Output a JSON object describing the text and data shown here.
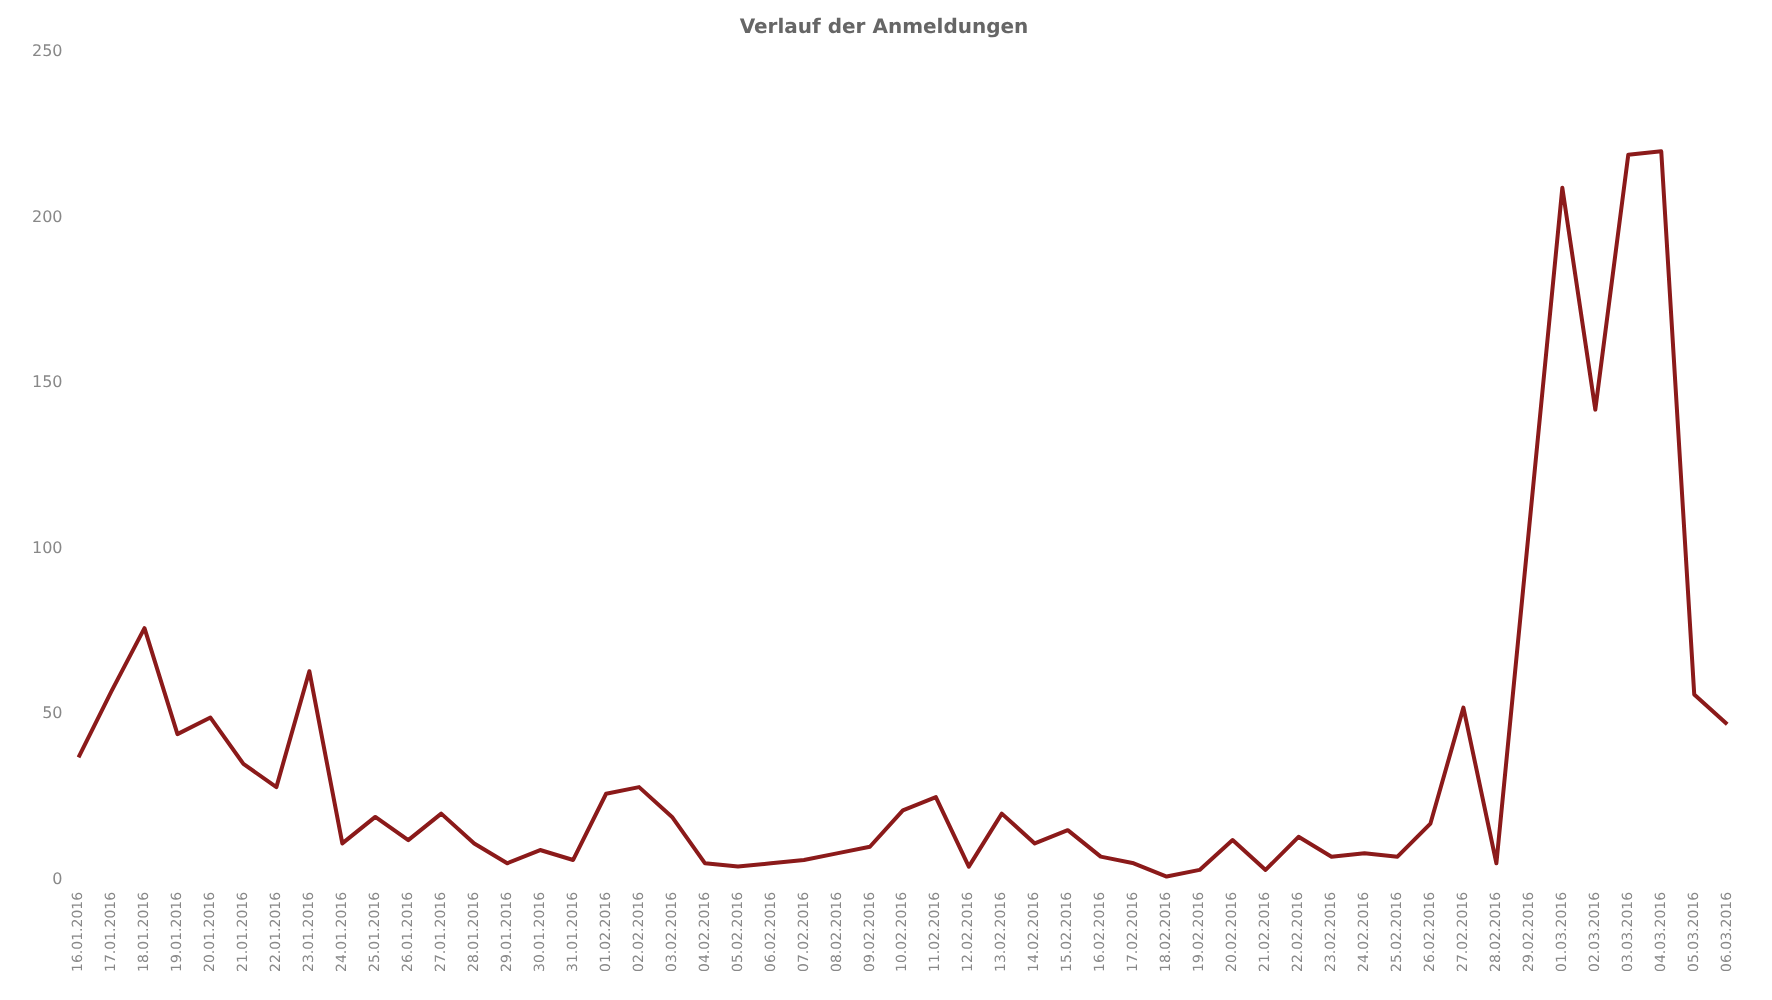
{
  "chart_data": {
    "type": "line",
    "title": "Verlauf der Anmeldungen",
    "categories": [
      "16.01.2016",
      "17.01.2016",
      "18.01.2016",
      "19.01.2016",
      "20.01.2016",
      "21.01.2016",
      "22.01.2016",
      "23.01.2016",
      "24.01.2016",
      "25.01.2016",
      "26.01.2016",
      "27.01.2016",
      "28.01.2016",
      "29.01.2016",
      "30.01.2016",
      "31.01.2016",
      "01.02.2016",
      "02.02.2016",
      "03.02.2016",
      "04.02.2016",
      "05.02.2016",
      "06.02.2016",
      "07.02.2016",
      "08.02.2016",
      "09.02.2016",
      "10.02.2016",
      "11.02.2016",
      "12.02.2016",
      "13.02.2016",
      "14.02.2016",
      "15.02.2016",
      "16.02.2016",
      "17.02.2016",
      "18.02.2016",
      "19.02.2016",
      "20.02.2016",
      "21.02.2016",
      "22.02.2016",
      "23.02.2016",
      "24.02.2016",
      "25.02.2016",
      "26.02.2016",
      "27.02.2016",
      "28.02.2016",
      "29.02.2016",
      "01.03.2016",
      "02.03.2016",
      "03.03.2016",
      "04.03.2016",
      "05.03.2016",
      "06.03.2016"
    ],
    "series": [
      {
        "color": "#8b1a1a",
        "values": [
          37,
          57,
          76,
          44,
          49,
          35,
          28,
          63,
          11,
          19,
          12,
          20,
          11,
          5,
          9,
          6,
          26,
          28,
          19,
          5,
          4,
          5,
          6,
          8,
          10,
          21,
          25,
          4,
          20,
          11,
          15,
          7,
          5,
          1,
          3,
          12,
          3,
          13,
          7,
          8,
          7,
          17,
          52,
          5,
          107,
          209,
          142,
          219,
          220,
          56,
          47
        ]
      }
    ],
    "ylim": [
      0,
      250
    ],
    "yticks": [
      0,
      50,
      100,
      150,
      200,
      250
    ],
    "grid": false,
    "marker": "none",
    "line_style": "solid"
  }
}
